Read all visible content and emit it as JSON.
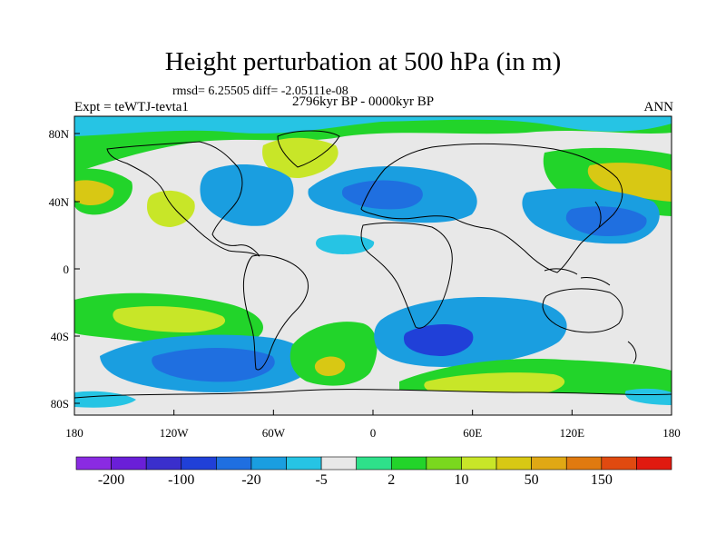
{
  "title": "Height perturbation at 500 hPa (in m)",
  "stats": "rmsd= 6.25505 diff= -2.05111e-08",
  "experiment": "Expt = teWTJ-tevta1",
  "period": "2796kyr BP - 0000kyr BP",
  "season": "ANN",
  "axes": {
    "y_ticks": [
      "80N",
      "40N",
      "0",
      "40S",
      "80S"
    ],
    "x_ticks": [
      "180",
      "120W",
      "60W",
      "0",
      "60E",
      "120E",
      "180"
    ]
  },
  "colorbar": {
    "labels": [
      "-200",
      "-100",
      "-20",
      "-5",
      "2",
      "10",
      "50",
      "150"
    ],
    "colors": [
      "#8a2be2",
      "#6a1fd8",
      "#3a2fcc",
      "#2040d8",
      "#1f6fe0",
      "#1a9ee0",
      "#26c4e4",
      "#e8e8e8",
      "#2ee08a",
      "#22d42a",
      "#7ad81e",
      "#c8e628",
      "#d8c814",
      "#e0a814",
      "#e07a10",
      "#e04a10",
      "#e01a10"
    ]
  },
  "map_colors": {
    "neutral": "#e8e8e8",
    "coast": "#000000",
    "neg_light": "#26c4e4",
    "neg_mid": "#1a9ee0",
    "neg_dark": "#1f6fe0",
    "neg_deep": "#2040d8",
    "pos_light": "#2ee08a",
    "pos_mid": "#22d42a",
    "pos_yellow": "#c8e628",
    "pos_orange": "#d8c814"
  }
}
